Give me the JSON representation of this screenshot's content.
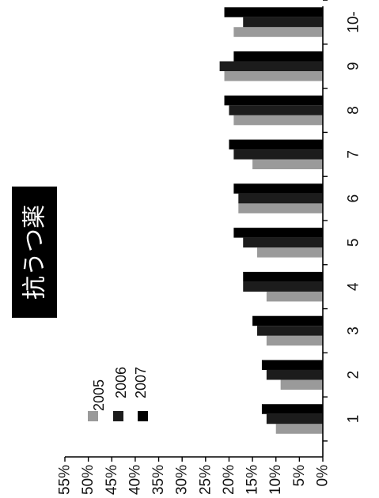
{
  "chart_data": {
    "type": "bar",
    "title": "抗うつ薬",
    "xlabel": "",
    "ylabel": "",
    "categories": [
      "1",
      "2",
      "3",
      "4",
      "5",
      "6",
      "7",
      "8",
      "9",
      "10-"
    ],
    "ylim": [
      0,
      55
    ],
    "yticks": [
      0,
      5,
      10,
      15,
      20,
      25,
      30,
      35,
      40,
      45,
      50,
      55
    ],
    "ytick_labels": [
      "0%",
      "5%",
      "10%",
      "15%",
      "20%",
      "25%",
      "30%",
      "35%",
      "40%",
      "45%",
      "50%",
      "55%"
    ],
    "grid": false,
    "legend_position": "top-left",
    "series": [
      {
        "name": "2005",
        "color": "#9a9a9a",
        "values": [
          10,
          9,
          12,
          12,
          14,
          18,
          15,
          19,
          21,
          19
        ]
      },
      {
        "name": "2006",
        "color": "#1c1c1c",
        "values": [
          12,
          12,
          14,
          17,
          17,
          18,
          19,
          20,
          22,
          17
        ]
      },
      {
        "name": "2007",
        "color": "#000000",
        "values": [
          13,
          13,
          15,
          17,
          19,
          19,
          20,
          21,
          19,
          21
        ]
      }
    ]
  }
}
